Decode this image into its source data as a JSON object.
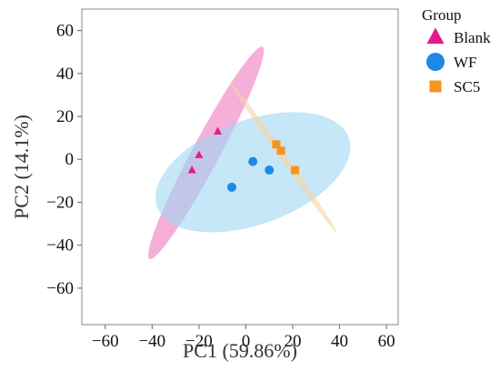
{
  "chart_data": {
    "type": "scatter",
    "xlabel": "PC1 (59.86%)",
    "ylabel": "PC2 (14.1%)",
    "xlim": [
      -70,
      65
    ],
    "ylim": [
      -77,
      70
    ],
    "xticks": [
      -60,
      -40,
      -20,
      0,
      20,
      40,
      60
    ],
    "yticks": [
      -60,
      -40,
      -20,
      0,
      20,
      40,
      60
    ],
    "grid": false,
    "legend": {
      "title": "Group",
      "position": "right"
    },
    "series": [
      {
        "name": "Blank",
        "marker": "triangle",
        "color": "#e6198a",
        "points": [
          [
            -12,
            13
          ],
          [
            -20,
            2
          ],
          [
            -23,
            -5
          ]
        ],
        "ellipse": {
          "center": [
            -17,
            3
          ],
          "rx": 55,
          "ry": 6,
          "angle_deg": 64,
          "fill": "#f07ac0"
        }
      },
      {
        "name": "WF",
        "marker": "circle",
        "color": "#1e88e5",
        "points": [
          [
            3,
            -1
          ],
          [
            10,
            -5
          ],
          [
            -6,
            -13
          ]
        ],
        "ellipse": {
          "center": [
            3,
            -6
          ],
          "rx": 44,
          "ry": 24,
          "angle_deg": 23,
          "fill": "#9fd7f4"
        }
      },
      {
        "name": "SC5",
        "marker": "square",
        "color": "#f7931e",
        "points": [
          [
            13,
            7
          ],
          [
            15,
            4
          ],
          [
            21,
            -5
          ]
        ],
        "ellipse": {
          "center": [
            16,
            1
          ],
          "rx": 42,
          "ry": 1.5,
          "angle_deg": -57,
          "fill": "#f7d3a4"
        }
      }
    ]
  }
}
